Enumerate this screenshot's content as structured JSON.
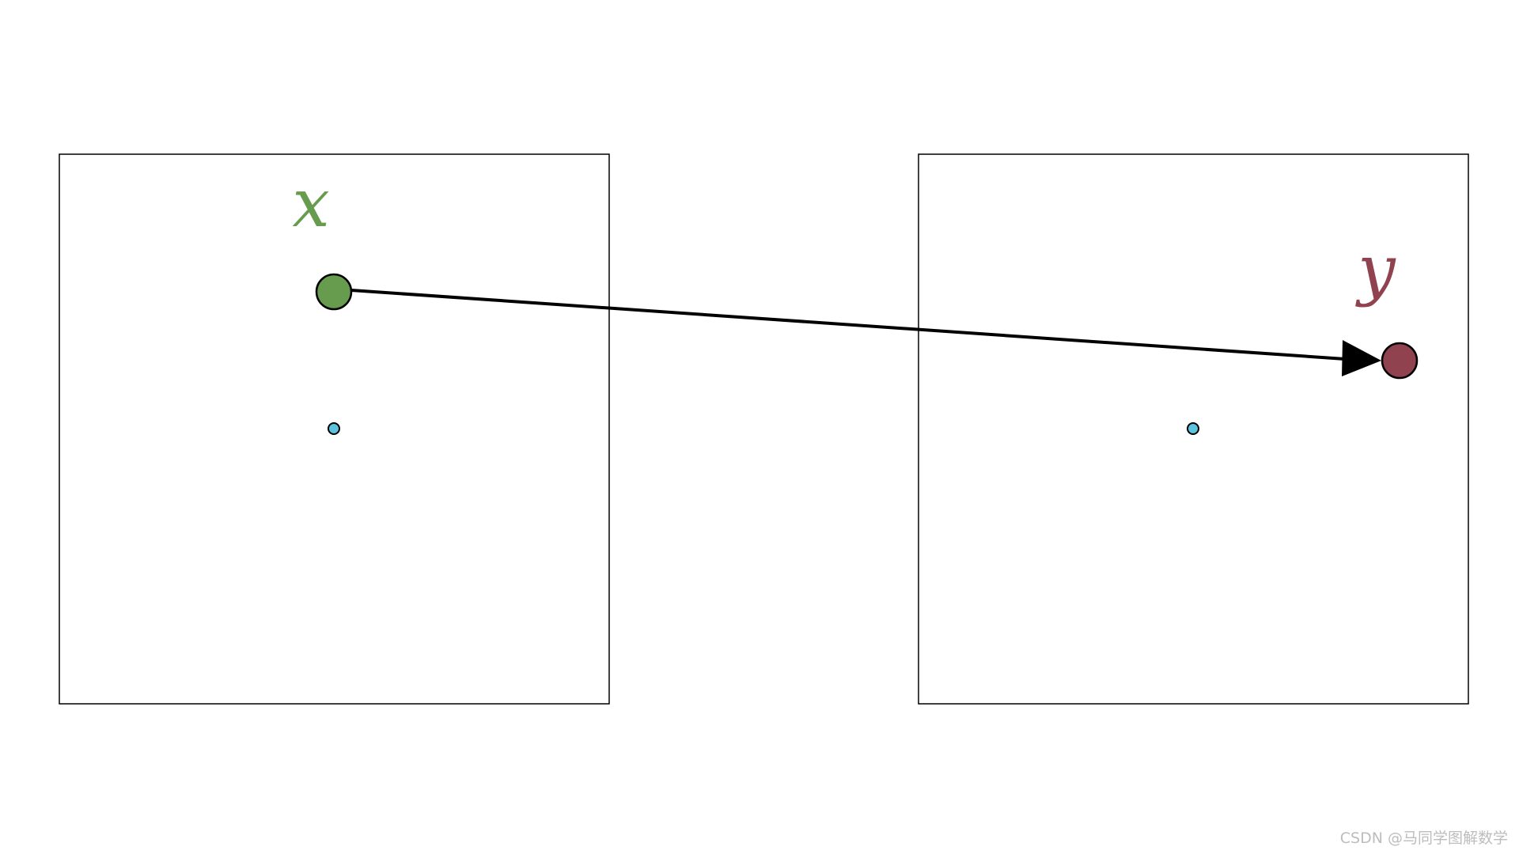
{
  "labels": {
    "source": "x",
    "target": "y"
  },
  "colors": {
    "source_point": "#679c4e",
    "source_label": "#679c4e",
    "target_point": "#91424f",
    "target_label": "#91424f",
    "origin_point": "#5bc3dd",
    "frame_stroke": "#000000",
    "arrow": "#000000"
  },
  "watermark": "CSDN @马同学图解数学"
}
